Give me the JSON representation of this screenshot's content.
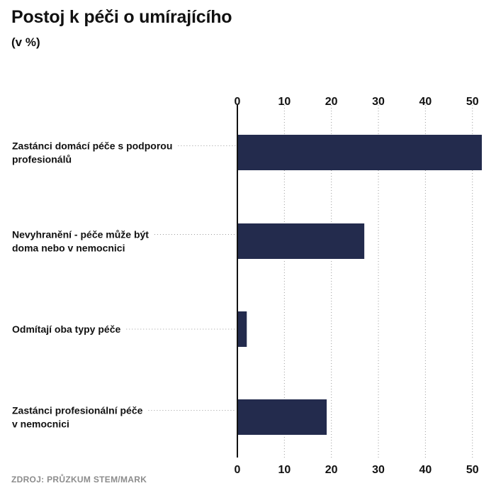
{
  "header": {
    "title": "Postoj k péči o umírajícího",
    "subtitle": "(v %)"
  },
  "footer": {
    "source": "ZDROJ: PRŮZKUM STEM/MARK"
  },
  "colors": {
    "bar": "#232b4d",
    "text": "#111111",
    "grid": "#9a9a9a",
    "axis": "#111111",
    "source": "#8c8c8c"
  },
  "chart_data": {
    "type": "bar",
    "orientation": "horizontal",
    "categories": [
      [
        "Zastánci domácí péče s podporou",
        "profesionálů"
      ],
      [
        "Nevyhranění - péče může být",
        "doma nebo v nemocnici"
      ],
      [
        "Odmítají oba typy péče"
      ],
      [
        "Zastánci profesionální péče",
        "v nemocnici"
      ]
    ],
    "values": [
      52,
      27,
      2,
      19
    ],
    "xlim": [
      0,
      52
    ],
    "ticks": [
      0,
      10,
      20,
      30,
      40,
      50
    ],
    "tick_labels_top": true,
    "tick_labels_bottom": true,
    "grid": "vertical dotted",
    "xlabel": "",
    "ylabel": ""
  }
}
